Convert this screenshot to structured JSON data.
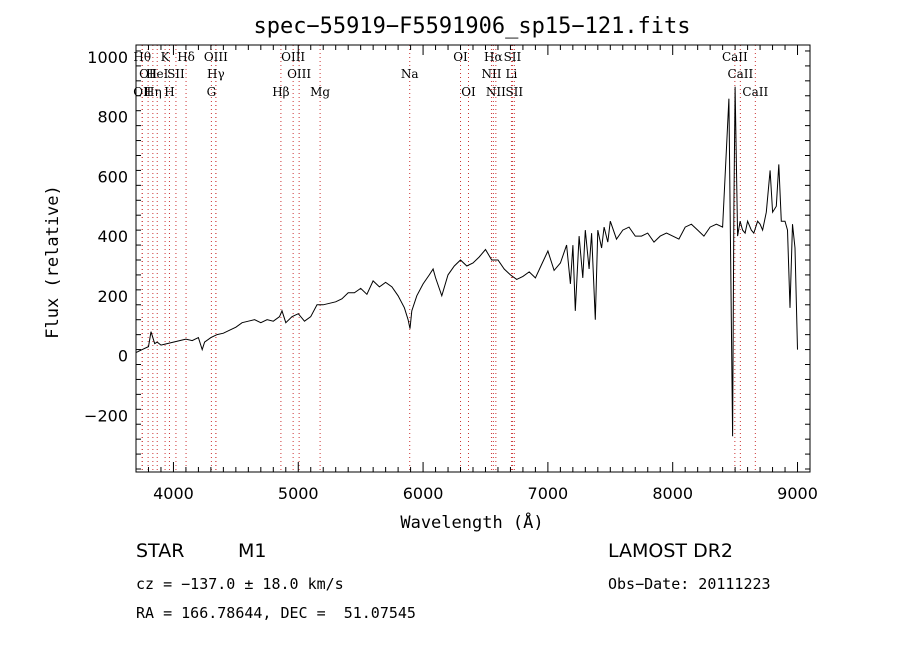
{
  "chart_data": {
    "type": "line",
    "title": "spec−55919−F5591906_sp15−121.fits",
    "xlabel": "Wavelength (Å)",
    "ylabel": "Flux (relative)",
    "xlim": [
      3700,
      9100
    ],
    "ylim": [
      -390,
      1040
    ],
    "xticks": [
      4000,
      5000,
      6000,
      7000,
      8000,
      9000
    ],
    "yticks": [
      -200,
      0,
      200,
      400,
      600,
      800,
      1000
    ],
    "ytick_labels": [
      "−200",
      "0",
      "200",
      "400",
      "600",
      "800",
      "1000"
    ],
    "colors": {
      "spectrum": "#000000",
      "line_marks": "#cc3333"
    },
    "spectrum": {
      "x": [
        3700,
        3750,
        3800,
        3820,
        3850,
        3870,
        3900,
        3950,
        4000,
        4050,
        4100,
        4150,
        4200,
        4230,
        4250,
        4300,
        4350,
        4400,
        4450,
        4500,
        4550,
        4600,
        4650,
        4700,
        4750,
        4800,
        4850,
        4870,
        4900,
        4950,
        5000,
        5050,
        5100,
        5150,
        5200,
        5250,
        5300,
        5350,
        5400,
        5450,
        5500,
        5550,
        5600,
        5650,
        5700,
        5750,
        5800,
        5850,
        5880,
        5895,
        5910,
        5950,
        6000,
        6050,
        6080,
        6100,
        6150,
        6200,
        6250,
        6300,
        6350,
        6400,
        6450,
        6500,
        6550,
        6600,
        6650,
        6700,
        6750,
        6800,
        6850,
        6900,
        6950,
        7000,
        7050,
        7100,
        7150,
        7180,
        7200,
        7220,
        7250,
        7280,
        7300,
        7330,
        7350,
        7380,
        7400,
        7430,
        7450,
        7480,
        7500,
        7550,
        7600,
        7650,
        7700,
        7750,
        7800,
        7850,
        7900,
        7950,
        8000,
        8050,
        8100,
        8150,
        8200,
        8250,
        8300,
        8350,
        8400,
        8450,
        8480,
        8490,
        8500,
        8520,
        8540,
        8560,
        8580,
        8600,
        8630,
        8650,
        8680,
        8700,
        8720,
        8750,
        8780,
        8800,
        8830,
        8850,
        8870,
        8900,
        8920,
        8940,
        8960,
        8980,
        9000
      ],
      "y": [
        10,
        20,
        30,
        80,
        40,
        45,
        35,
        40,
        45,
        50,
        55,
        50,
        60,
        20,
        45,
        60,
        70,
        75,
        85,
        95,
        110,
        115,
        120,
        110,
        120,
        115,
        130,
        150,
        110,
        130,
        140,
        115,
        130,
        170,
        170,
        175,
        180,
        190,
        210,
        210,
        225,
        205,
        250,
        230,
        245,
        230,
        200,
        160,
        120,
        90,
        150,
        200,
        240,
        270,
        290,
        260,
        200,
        270,
        300,
        320,
        300,
        310,
        330,
        355,
        320,
        320,
        290,
        270,
        255,
        265,
        280,
        260,
        305,
        350,
        285,
        310,
        370,
        240,
        370,
        150,
        400,
        260,
        420,
        290,
        410,
        120,
        420,
        360,
        430,
        380,
        450,
        390,
        420,
        430,
        400,
        400,
        410,
        380,
        400,
        410,
        400,
        390,
        430,
        440,
        420,
        400,
        430,
        440,
        430,
        860,
        -270,
        500,
        900,
        400,
        450,
        420,
        410,
        450,
        420,
        410,
        450,
        440,
        420,
        480,
        620,
        480,
        500,
        640,
        450,
        450,
        420,
        160,
        440,
        360,
        20
      ]
    },
    "lines": [
      {
        "wl": 3750,
        "label": "Hθ",
        "row": 1
      },
      {
        "wl": 3797,
        "label": "OⅡ",
        "row": 2
      },
      {
        "wl": 3750,
        "label": "OⅡ",
        "row": 3
      },
      {
        "wl": 3835,
        "label": "Hη",
        "row": 3
      },
      {
        "wl": 3870,
        "label": "HeI",
        "row": 2
      },
      {
        "wl": 3933,
        "label": "K",
        "row": 1
      },
      {
        "wl": 3968,
        "label": "H",
        "row": 3
      },
      {
        "wl": 4020,
        "label": "SII",
        "row": 2
      },
      {
        "wl": 4101,
        "label": "Hδ",
        "row": 1
      },
      {
        "wl": 4340,
        "label": "OIII",
        "row": 1
      },
      {
        "wl": 4340,
        "label": "Hγ",
        "row": 2
      },
      {
        "wl": 4304,
        "label": "G",
        "row": 3
      },
      {
        "wl": 4861,
        "label": "Hβ",
        "row": 3
      },
      {
        "wl": 4959,
        "label": "OIII",
        "row": 1
      },
      {
        "wl": 5007,
        "label": "OIII",
        "row": 2
      },
      {
        "wl": 5175,
        "label": "Mg",
        "row": 3
      },
      {
        "wl": 5893,
        "label": "Na",
        "row": 2
      },
      {
        "wl": 6300,
        "label": "OI",
        "row": 1
      },
      {
        "wl": 6364,
        "label": "OI",
        "row": 3
      },
      {
        "wl": 6548,
        "label": "NII",
        "row": 2
      },
      {
        "wl": 6563,
        "label": "Hα",
        "row": 1
      },
      {
        "wl": 6583,
        "label": "NII",
        "row": 3
      },
      {
        "wl": 6716,
        "label": "SII",
        "row": 1
      },
      {
        "wl": 6731,
        "label": "SII",
        "row": 3
      },
      {
        "wl": 6708,
        "label": "Li",
        "row": 2
      },
      {
        "wl": 8498,
        "label": "CaII",
        "row": 1
      },
      {
        "wl": 8542,
        "label": "CaII",
        "row": 2
      },
      {
        "wl": 8662,
        "label": "CaII",
        "row": 3
      }
    ]
  },
  "info": {
    "class": "STAR",
    "subclass": "M1",
    "survey": "LAMOST DR2",
    "cz": "cz = −137.0 ± 18.0 km/s",
    "obsdate": "Obs−Date: 20111223",
    "radec": "RA = 166.78644, DEC =  51.07545"
  }
}
